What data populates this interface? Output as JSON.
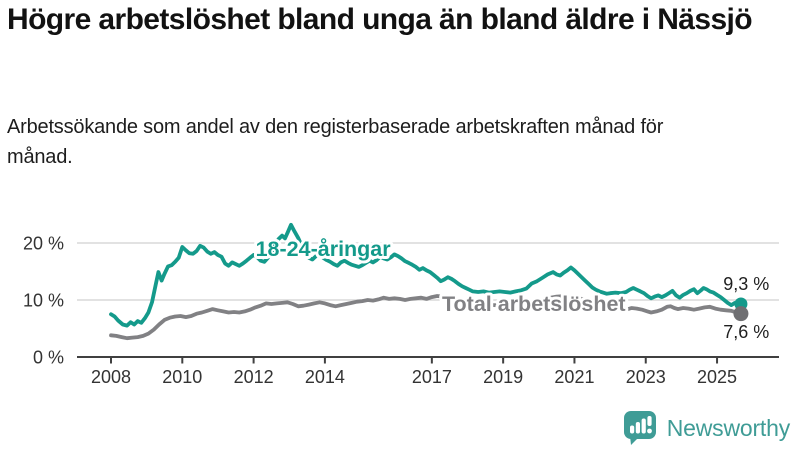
{
  "header": {
    "title": "Högre arbetslöshet bland unga än bland äldre i Nässjö",
    "subtitle": "Arbetssökande som andel av den registerbaserade arbetskraften månad för månad."
  },
  "chart_data": {
    "type": "line",
    "title": "Högre arbetslöshet bland unga än bland äldre i Nässjö",
    "subtitle": "Arbetssökande som andel av den registerbaserade arbetskraften månad för månad.",
    "grid": "horizontal-only",
    "legend_position": "inline-labels-on-lines",
    "x_range": [
      2008,
      2025.67
    ],
    "ylim": [
      0,
      24
    ],
    "y_unit": "%",
    "x_axis": {
      "ticks": [
        {
          "value": 2008,
          "label": "2008"
        },
        {
          "value": 2010,
          "label": "2010"
        },
        {
          "value": 2012,
          "label": "2012"
        },
        {
          "value": 2014,
          "label": "2014"
        },
        {
          "value": 2017,
          "label": "2017"
        },
        {
          "value": 2019,
          "label": "2019"
        },
        {
          "value": 2021,
          "label": "2021"
        },
        {
          "value": 2023,
          "label": "2023"
        },
        {
          "value": 2025,
          "label": "2025"
        }
      ]
    },
    "y_axis": {
      "ticks": [
        {
          "value": 0,
          "label": "0 %"
        },
        {
          "value": 10,
          "label": "10 %"
        },
        {
          "value": 20,
          "label": "20 %"
        }
      ]
    },
    "series": [
      {
        "name": "18-24-åringar",
        "color": "#149a8b",
        "dot_color": "#149a8b",
        "dot_radius": 6.5,
        "end_value": 9.3,
        "end_label": "9,3 %",
        "label_anchor": {
          "year": 2013.95,
          "value": 17.7
        },
        "end_label_anchor": {
          "year": 2025.82,
          "value": 11.75
        },
        "points": [
          [
            2008.0,
            7.5
          ],
          [
            2008.1,
            7.1
          ],
          [
            2008.2,
            6.4
          ],
          [
            2008.33,
            5.7
          ],
          [
            2008.45,
            5.5
          ],
          [
            2008.55,
            6.1
          ],
          [
            2008.65,
            5.7
          ],
          [
            2008.75,
            6.3
          ],
          [
            2008.85,
            6.0
          ],
          [
            2008.95,
            6.8
          ],
          [
            2009.05,
            7.8
          ],
          [
            2009.15,
            9.6
          ],
          [
            2009.25,
            12.6
          ],
          [
            2009.33,
            14.9
          ],
          [
            2009.42,
            13.4
          ],
          [
            2009.5,
            14.6
          ],
          [
            2009.6,
            15.9
          ],
          [
            2009.7,
            16.1
          ],
          [
            2009.8,
            16.7
          ],
          [
            2009.9,
            17.4
          ],
          [
            2010.0,
            19.3
          ],
          [
            2010.1,
            18.7
          ],
          [
            2010.2,
            18.2
          ],
          [
            2010.3,
            18.1
          ],
          [
            2010.4,
            18.6
          ],
          [
            2010.5,
            19.5
          ],
          [
            2010.6,
            19.2
          ],
          [
            2010.7,
            18.5
          ],
          [
            2010.8,
            18.1
          ],
          [
            2010.9,
            18.4
          ],
          [
            2011.0,
            17.9
          ],
          [
            2011.1,
            17.6
          ],
          [
            2011.2,
            16.4
          ],
          [
            2011.3,
            16.0
          ],
          [
            2011.4,
            16.6
          ],
          [
            2011.5,
            16.3
          ],
          [
            2011.6,
            16.0
          ],
          [
            2011.7,
            16.4
          ],
          [
            2011.8,
            16.9
          ],
          [
            2011.9,
            17.4
          ],
          [
            2012.0,
            17.9
          ],
          [
            2012.1,
            17.5
          ],
          [
            2012.2,
            16.9
          ],
          [
            2012.3,
            16.7
          ],
          [
            2012.4,
            17.4
          ],
          [
            2012.5,
            18.3
          ],
          [
            2012.6,
            19.6
          ],
          [
            2012.7,
            20.7
          ],
          [
            2012.8,
            21.3
          ],
          [
            2012.88,
            20.8
          ],
          [
            2012.96,
            21.9
          ],
          [
            2013.05,
            23.2
          ],
          [
            2013.15,
            22.0
          ],
          [
            2013.25,
            20.9
          ],
          [
            2013.35,
            19.5
          ],
          [
            2013.45,
            18.2
          ],
          [
            2013.55,
            17.4
          ],
          [
            2013.65,
            17.1
          ],
          [
            2013.75,
            17.7
          ],
          [
            2013.85,
            18.0
          ],
          [
            2013.95,
            17.4
          ],
          [
            2014.05,
            17.0
          ],
          [
            2014.15,
            16.7
          ],
          [
            2014.25,
            16.3
          ],
          [
            2014.35,
            16.0
          ],
          [
            2014.45,
            16.6
          ],
          [
            2014.55,
            16.9
          ],
          [
            2014.65,
            16.5
          ],
          [
            2014.75,
            16.2
          ],
          [
            2014.85,
            16.0
          ],
          [
            2014.95,
            15.8
          ],
          [
            2015.05,
            16.1
          ],
          [
            2015.15,
            16.5
          ],
          [
            2015.25,
            16.9
          ],
          [
            2015.35,
            16.6
          ],
          [
            2015.45,
            17.0
          ],
          [
            2015.55,
            17.6
          ],
          [
            2015.65,
            17.3
          ],
          [
            2015.75,
            17.1
          ],
          [
            2015.85,
            17.5
          ],
          [
            2015.95,
            18.0
          ],
          [
            2016.05,
            17.7
          ],
          [
            2016.15,
            17.3
          ],
          [
            2016.25,
            16.8
          ],
          [
            2016.35,
            16.5
          ],
          [
            2016.45,
            16.2
          ],
          [
            2016.55,
            15.8
          ],
          [
            2016.65,
            15.3
          ],
          [
            2016.75,
            15.6
          ],
          [
            2016.85,
            15.2
          ],
          [
            2016.95,
            14.9
          ],
          [
            2017.05,
            14.4
          ],
          [
            2017.15,
            13.9
          ],
          [
            2017.25,
            13.3
          ],
          [
            2017.35,
            13.6
          ],
          [
            2017.45,
            14.0
          ],
          [
            2017.55,
            13.7
          ],
          [
            2017.65,
            13.3
          ],
          [
            2017.75,
            12.8
          ],
          [
            2017.85,
            12.4
          ],
          [
            2017.95,
            12.1
          ],
          [
            2018.05,
            11.8
          ],
          [
            2018.15,
            11.5
          ],
          [
            2018.3,
            11.4
          ],
          [
            2018.45,
            11.5
          ],
          [
            2018.6,
            11.3
          ],
          [
            2018.75,
            11.4
          ],
          [
            2018.9,
            11.5
          ],
          [
            2019.05,
            11.4
          ],
          [
            2019.2,
            11.3
          ],
          [
            2019.35,
            11.5
          ],
          [
            2019.5,
            11.7
          ],
          [
            2019.65,
            12.0
          ],
          [
            2019.8,
            12.9
          ],
          [
            2019.95,
            13.3
          ],
          [
            2020.1,
            13.9
          ],
          [
            2020.25,
            14.5
          ],
          [
            2020.4,
            14.9
          ],
          [
            2020.5,
            14.5
          ],
          [
            2020.6,
            14.3
          ],
          [
            2020.7,
            14.8
          ],
          [
            2020.8,
            15.2
          ],
          [
            2020.9,
            15.7
          ],
          [
            2021.0,
            15.2
          ],
          [
            2021.1,
            14.6
          ],
          [
            2021.2,
            14.0
          ],
          [
            2021.3,
            13.4
          ],
          [
            2021.4,
            12.8
          ],
          [
            2021.5,
            12.2
          ],
          [
            2021.6,
            11.8
          ],
          [
            2021.7,
            11.5
          ],
          [
            2021.8,
            11.3
          ],
          [
            2021.9,
            11.1
          ],
          [
            2022.0,
            11.2
          ],
          [
            2022.15,
            11.3
          ],
          [
            2022.3,
            11.2
          ],
          [
            2022.45,
            11.4
          ],
          [
            2022.55,
            11.8
          ],
          [
            2022.65,
            12.1
          ],
          [
            2022.75,
            11.8
          ],
          [
            2022.85,
            11.5
          ],
          [
            2022.95,
            11.2
          ],
          [
            2023.05,
            10.7
          ],
          [
            2023.15,
            10.3
          ],
          [
            2023.25,
            10.6
          ],
          [
            2023.35,
            10.8
          ],
          [
            2023.45,
            10.5
          ],
          [
            2023.55,
            10.8
          ],
          [
            2023.65,
            11.2
          ],
          [
            2023.75,
            11.6
          ],
          [
            2023.85,
            10.8
          ],
          [
            2023.95,
            10.4
          ],
          [
            2024.05,
            10.9
          ],
          [
            2024.15,
            11.2
          ],
          [
            2024.25,
            11.6
          ],
          [
            2024.35,
            11.9
          ],
          [
            2024.45,
            11.2
          ],
          [
            2024.55,
            11.7
          ],
          [
            2024.62,
            12.1
          ],
          [
            2024.7,
            11.9
          ],
          [
            2024.8,
            11.5
          ],
          [
            2024.9,
            11.3
          ],
          [
            2025.0,
            10.9
          ],
          [
            2025.1,
            10.5
          ],
          [
            2025.2,
            10.0
          ],
          [
            2025.3,
            9.5
          ],
          [
            2025.4,
            9.1
          ],
          [
            2025.5,
            9.5
          ],
          [
            2025.58,
            9.4
          ],
          [
            2025.67,
            9.3
          ]
        ]
      },
      {
        "name": "Total arbetslöshet",
        "color": "#818184",
        "dot_color": "#6f6f72",
        "dot_radius": 7.5,
        "end_value": 7.6,
        "end_label": "7,6 %",
        "label_anchor": {
          "year": 2019.86,
          "value": 8.05
        },
        "end_label_anchor": {
          "year": 2025.82,
          "value": 3.35
        },
        "points": [
          [
            2008.0,
            3.8
          ],
          [
            2008.15,
            3.7
          ],
          [
            2008.3,
            3.5
          ],
          [
            2008.45,
            3.3
          ],
          [
            2008.6,
            3.4
          ],
          [
            2008.75,
            3.5
          ],
          [
            2008.9,
            3.7
          ],
          [
            2009.05,
            4.1
          ],
          [
            2009.2,
            4.8
          ],
          [
            2009.35,
            5.7
          ],
          [
            2009.5,
            6.5
          ],
          [
            2009.65,
            6.9
          ],
          [
            2009.8,
            7.1
          ],
          [
            2009.95,
            7.2
          ],
          [
            2010.1,
            7.0
          ],
          [
            2010.25,
            7.2
          ],
          [
            2010.4,
            7.6
          ],
          [
            2010.55,
            7.8
          ],
          [
            2010.7,
            8.1
          ],
          [
            2010.85,
            8.4
          ],
          [
            2011.0,
            8.2
          ],
          [
            2011.15,
            8.0
          ],
          [
            2011.3,
            7.8
          ],
          [
            2011.45,
            7.9
          ],
          [
            2011.6,
            7.8
          ],
          [
            2011.75,
            8.0
          ],
          [
            2011.9,
            8.3
          ],
          [
            2012.05,
            8.7
          ],
          [
            2012.2,
            9.0
          ],
          [
            2012.35,
            9.4
          ],
          [
            2012.5,
            9.3
          ],
          [
            2012.65,
            9.4
          ],
          [
            2012.8,
            9.5
          ],
          [
            2012.95,
            9.6
          ],
          [
            2013.1,
            9.3
          ],
          [
            2013.25,
            8.9
          ],
          [
            2013.4,
            9.0
          ],
          [
            2013.55,
            9.2
          ],
          [
            2013.7,
            9.4
          ],
          [
            2013.85,
            9.6
          ],
          [
            2014.0,
            9.4
          ],
          [
            2014.15,
            9.1
          ],
          [
            2014.3,
            8.9
          ],
          [
            2014.45,
            9.1
          ],
          [
            2014.6,
            9.3
          ],
          [
            2014.75,
            9.5
          ],
          [
            2014.9,
            9.7
          ],
          [
            2015.05,
            9.8
          ],
          [
            2015.2,
            10.0
          ],
          [
            2015.35,
            9.9
          ],
          [
            2015.5,
            10.1
          ],
          [
            2015.65,
            10.4
          ],
          [
            2015.8,
            10.2
          ],
          [
            2015.95,
            10.3
          ],
          [
            2016.1,
            10.2
          ],
          [
            2016.25,
            10.0
          ],
          [
            2016.4,
            10.2
          ],
          [
            2016.55,
            10.3
          ],
          [
            2016.7,
            10.4
          ],
          [
            2016.85,
            10.2
          ],
          [
            2017.0,
            10.5
          ],
          [
            2017.15,
            10.7
          ],
          [
            2017.3,
            10.6
          ],
          [
            2017.45,
            10.4
          ],
          [
            2017.6,
            10.2
          ],
          [
            2017.75,
            10.0
          ],
          [
            2017.9,
            9.8
          ],
          [
            2018.1,
            9.6
          ],
          [
            2018.3,
            9.4
          ],
          [
            2018.5,
            9.2
          ],
          [
            2018.75,
            9.1
          ],
          [
            2019.0,
            9.0
          ],
          [
            2019.25,
            9.1
          ],
          [
            2019.5,
            9.2
          ],
          [
            2019.75,
            9.5
          ],
          [
            2020.0,
            9.9
          ],
          [
            2020.25,
            10.3
          ],
          [
            2020.5,
            10.6
          ],
          [
            2020.75,
            10.7
          ],
          [
            2021.0,
            10.5
          ],
          [
            2021.25,
            10.1
          ],
          [
            2021.5,
            9.6
          ],
          [
            2021.75,
            9.2
          ],
          [
            2022.0,
            8.8
          ],
          [
            2022.15,
            8.6
          ],
          [
            2022.3,
            8.4
          ],
          [
            2022.45,
            8.3
          ],
          [
            2022.6,
            8.6
          ],
          [
            2022.75,
            8.5
          ],
          [
            2022.9,
            8.3
          ],
          [
            2023.05,
            8.0
          ],
          [
            2023.15,
            7.8
          ],
          [
            2023.3,
            8.0
          ],
          [
            2023.45,
            8.3
          ],
          [
            2023.6,
            8.8
          ],
          [
            2023.7,
            8.9
          ],
          [
            2023.8,
            8.6
          ],
          [
            2023.9,
            8.4
          ],
          [
            2024.05,
            8.6
          ],
          [
            2024.2,
            8.5
          ],
          [
            2024.35,
            8.3
          ],
          [
            2024.5,
            8.5
          ],
          [
            2024.65,
            8.7
          ],
          [
            2024.8,
            8.8
          ],
          [
            2024.95,
            8.5
          ],
          [
            2025.1,
            8.3
          ],
          [
            2025.25,
            8.2
          ],
          [
            2025.4,
            8.1
          ],
          [
            2025.5,
            7.9
          ],
          [
            2025.58,
            7.8
          ],
          [
            2025.67,
            7.6
          ]
        ]
      }
    ]
  },
  "footer": {
    "brand": "Newsworthy",
    "brand_color": "#3f9c96",
    "logo_icon": "bar-chart-speech-bubble-icon"
  }
}
